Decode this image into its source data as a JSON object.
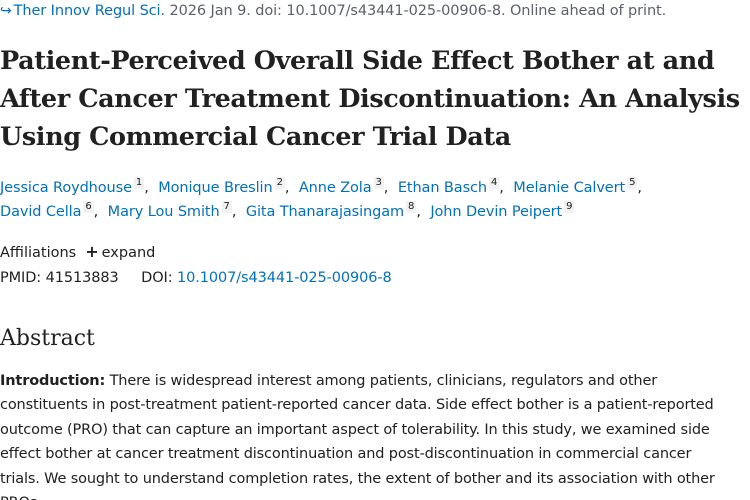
{
  "citation": {
    "arrow": "↪",
    "journal": "Ther Innov Regul Sci.",
    "details": " 2026 Jan 9. doi: 10.1007/s43441-025-00906-8. Online ahead of print."
  },
  "title_lines": [
    "Patient-Perceived Overall Side Effect Bother at and",
    "After Cancer Treatment Discontinuation: An Analysis",
    "Using Commercial Cancer Trial Data"
  ],
  "authors": [
    {
      "name": "Jessica Roydhouse",
      "aff": "1"
    },
    {
      "name": "Monique Breslin",
      "aff": "2"
    },
    {
      "name": "Anne Zola",
      "aff": "3"
    },
    {
      "name": "Ethan Basch",
      "aff": "4"
    },
    {
      "name": "Melanie Calvert",
      "aff": "5"
    },
    {
      "name": "David Cella",
      "aff": "6"
    },
    {
      "name": "Mary Lou Smith",
      "aff": "7"
    },
    {
      "name": "Gita Thanarajasingam",
      "aff": "8"
    },
    {
      "name": "John Devin Peipert",
      "aff": "9"
    }
  ],
  "affiliations": {
    "label": "Affiliations",
    "expand_icon": "+",
    "expand_label": "expand"
  },
  "ids": {
    "pmid_label": "PMID:",
    "pmid": "41513883",
    "doi_label": "DOI:",
    "doi": "10.1007/s43441-025-00906-8"
  },
  "abstract": {
    "heading": "Abstract",
    "intro_label": "Introduction:",
    "lines": [
      " There is widespread interest among patients, clinicians, regulators and other",
      "constituents in post-treatment patient-reported cancer data. Side effect bother is a patient-reported",
      "outcome (PRO) that can capture an important aspect of tolerability. In this study, we examined side",
      "effect bother at cancer treatment discontinuation and post-discontinuation in commercial cancer",
      "trials. We sought to understand completion rates, the extent of bother and its association with other",
      "PROs."
    ]
  }
}
